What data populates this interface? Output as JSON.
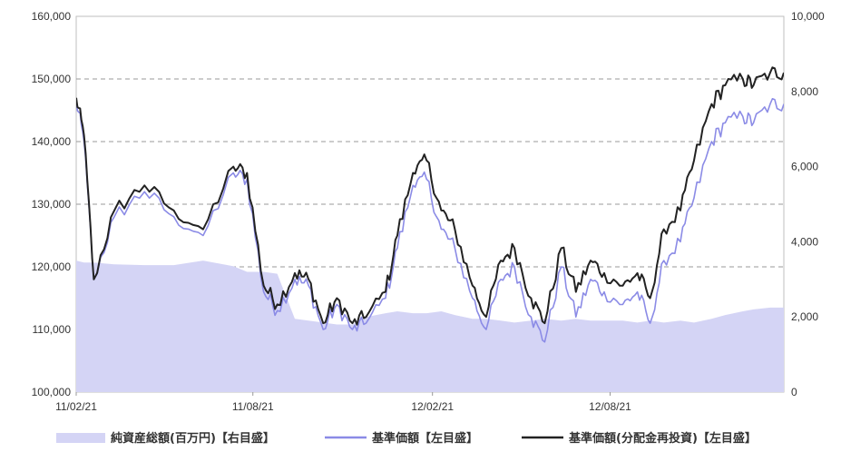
{
  "chart_data": {
    "type": "line",
    "x": [
      "11/02/21",
      "11/03/01",
      "11/03/11",
      "11/04/01",
      "11/05/02",
      "11/06/01",
      "11/07/01",
      "11/08/01",
      "11/08/15",
      "11/09/01",
      "11/09/15",
      "11/10/03",
      "11/10/17",
      "11/11/01",
      "11/11/15",
      "11/12/01",
      "11/12/15",
      "12/01/04",
      "12/01/16",
      "12/02/01",
      "12/02/15",
      "12/03/01",
      "12/03/15",
      "12/04/02",
      "12/04/16",
      "12/05/01",
      "12/05/15",
      "12/06/01",
      "12/06/15",
      "12/07/02",
      "12/07/17",
      "12/08/01",
      "12/08/15",
      "12/09/03",
      "12/09/18",
      "12/10/01",
      "12/10/15",
      "12/11/01",
      "12/11/15",
      "12/12/03",
      "12/12/17",
      "13/01/04",
      "13/01/15",
      "13/02/01",
      "13/02/15"
    ],
    "x_ticks": [
      "11/02/21",
      "11/08/21",
      "12/02/21",
      "12/08/21"
    ],
    "ylim_left": [
      100000,
      160000
    ],
    "yticks_left": [
      "100,000",
      "110,000",
      "120,000",
      "130,000",
      "140,000",
      "150,000",
      "160,000"
    ],
    "ylim_right": [
      0,
      10000
    ],
    "yticks_right": [
      "0",
      "2,000",
      "4,000",
      "6,000",
      "8,000",
      "10,000"
    ],
    "grid": "dashed horizontal",
    "legend_position": "bottom",
    "series": [
      {
        "name": "純資産総額(百万円)【右目盛】",
        "type": "area",
        "axis": "right",
        "color": "#d4d4f5",
        "values": [
          3500,
          3450,
          3450,
          3400,
          3380,
          3380,
          3500,
          3350,
          3200,
          3200,
          3150,
          1950,
          1900,
          1850,
          1800,
          1800,
          2000,
          2100,
          2150,
          2100,
          2100,
          2150,
          2050,
          1950,
          1950,
          1900,
          1850,
          1900,
          1950,
          1900,
          1950,
          1900,
          1900,
          1900,
          1850,
          1900,
          1850,
          1900,
          1850,
          1950,
          2050,
          2150,
          2200,
          2250,
          2250
        ]
      },
      {
        "name": "基準価額【左目盛】",
        "type": "line",
        "axis": "left",
        "color": "#8b8be6",
        "values": [
          146500,
          140000,
          118000,
          128000,
          132000,
          128000,
          125000,
          135000,
          134000,
          116000,
          113000,
          118000,
          117000,
          110000,
          114000,
          110000,
          111000,
          115000,
          123000,
          133000,
          134000,
          126000,
          123000,
          115000,
          110000,
          118000,
          120000,
          112000,
          108000,
          120000,
          112000,
          118000,
          116000,
          114000,
          116000,
          111000,
          121000,
          124000,
          131000,
          140000,
          143000,
          144000,
          143000,
          146000,
          146000
        ]
      },
      {
        "name": "基準価額(分配金再投資)【左目盛】",
        "type": "line",
        "axis": "left",
        "color": "#222222",
        "values": [
          147000,
          141000,
          118000,
          129000,
          133000,
          129000,
          126000,
          136000,
          135000,
          117000,
          114000,
          119000,
          118000,
          111000,
          115000,
          111000,
          112000,
          116000,
          125000,
          135000,
          137000,
          129000,
          126000,
          117000,
          112000,
          121000,
          123000,
          115000,
          111000,
          123000,
          116000,
          121000,
          119000,
          117000,
          119000,
          115000,
          126000,
          129000,
          137000,
          146000,
          149000,
          150000,
          149000,
          151000,
          151000
        ]
      }
    ]
  }
}
